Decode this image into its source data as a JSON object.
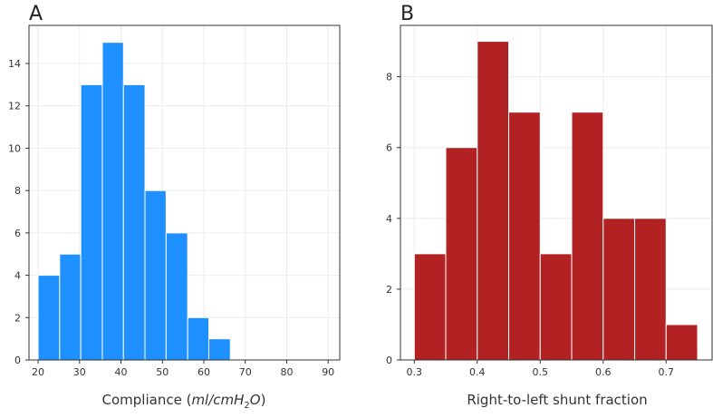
{
  "chart_data": [
    {
      "type": "bar",
      "panel": "A",
      "xlabel": "Compliance (ml/cmH2O)",
      "xlabel_parts": {
        "prefix": "Compliance (",
        "ital_a": "ml/cmH",
        "sub": "2",
        "ital_b": "O",
        "suffix": ")"
      },
      "bin_edges": [
        20,
        25,
        30,
        35,
        40,
        45,
        50,
        55,
        60,
        65,
        70,
        75,
        80,
        85,
        90
      ],
      "bins": [
        {
          "x0": 20.0,
          "x1": 25.2,
          "count": 4
        },
        {
          "x0": 25.2,
          "x1": 30.3,
          "count": 5
        },
        {
          "x0": 30.3,
          "x1": 35.5,
          "count": 13
        },
        {
          "x0": 35.5,
          "x1": 40.6,
          "count": 15
        },
        {
          "x0": 40.6,
          "x1": 45.8,
          "count": 13
        },
        {
          "x0": 45.8,
          "x1": 50.9,
          "count": 8
        },
        {
          "x0": 50.9,
          "x1": 56.1,
          "count": 6
        },
        {
          "x0": 56.1,
          "x1": 61.2,
          "count": 2
        },
        {
          "x0": 61.2,
          "x1": 66.4,
          "count": 1
        }
      ],
      "xlim": [
        17.8,
        92.8
      ],
      "ylim": [
        0,
        15.8
      ],
      "xticks": [
        20,
        30,
        40,
        50,
        60,
        70,
        80,
        90
      ],
      "yticks": [
        0,
        2,
        4,
        6,
        8,
        10,
        12,
        14
      ],
      "color": "#1e90ff",
      "grid": true
    },
    {
      "type": "bar",
      "panel": "B",
      "xlabel": "Right-to-left shunt fraction",
      "bins": [
        {
          "x0": 0.3,
          "x1": 0.35,
          "count": 3
        },
        {
          "x0": 0.35,
          "x1": 0.4,
          "count": 6
        },
        {
          "x0": 0.4,
          "x1": 0.45,
          "count": 9
        },
        {
          "x0": 0.45,
          "x1": 0.5,
          "count": 7
        },
        {
          "x0": 0.5,
          "x1": 0.55,
          "count": 3
        },
        {
          "x0": 0.55,
          "x1": 0.6,
          "count": 7
        },
        {
          "x0": 0.6,
          "x1": 0.65,
          "count": 4
        },
        {
          "x0": 0.65,
          "x1": 0.7,
          "count": 4
        },
        {
          "x0": 0.7,
          "x1": 0.75,
          "count": 1
        }
      ],
      "xlim": [
        0.278,
        0.773
      ],
      "ylim": [
        0,
        9.45
      ],
      "xticks": [
        "0.3",
        "0.4",
        "0.5",
        "0.6",
        "0.7"
      ],
      "yticks": [
        0,
        2,
        4,
        6,
        8
      ],
      "color": "#b22222",
      "grid": true
    }
  ]
}
